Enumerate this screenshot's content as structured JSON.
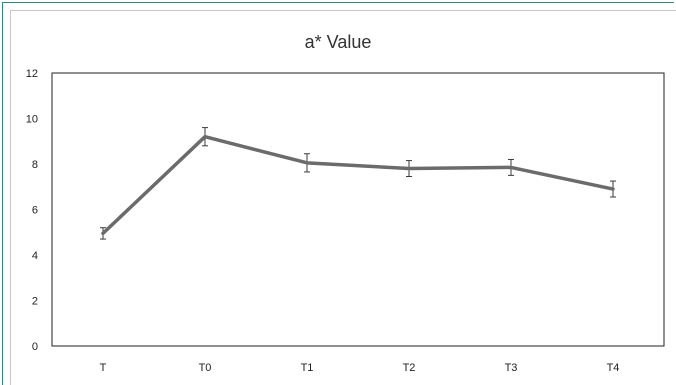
{
  "chart_data": {
    "type": "line",
    "title": "a* Value",
    "xlabel": "",
    "ylabel": "",
    "categories": [
      "T",
      "T0",
      "T1",
      "T2",
      "T3",
      "T4"
    ],
    "series": [
      {
        "values": [
          4.95,
          9.2,
          8.05,
          7.8,
          7.85,
          6.9
        ],
        "error": [
          0.25,
          0.4,
          0.4,
          0.35,
          0.35,
          0.35
        ]
      }
    ],
    "ylim": [
      0,
      12
    ],
    "yticks": [
      "0",
      "2",
      "4",
      "6",
      "8",
      "10",
      "12"
    ],
    "grid": false,
    "legend": "none",
    "colors": {
      "line": "#6b6b6b",
      "errorbar": "#3a3a3a",
      "axis": "#222222",
      "frame_accent": "#2e8b7a"
    }
  }
}
